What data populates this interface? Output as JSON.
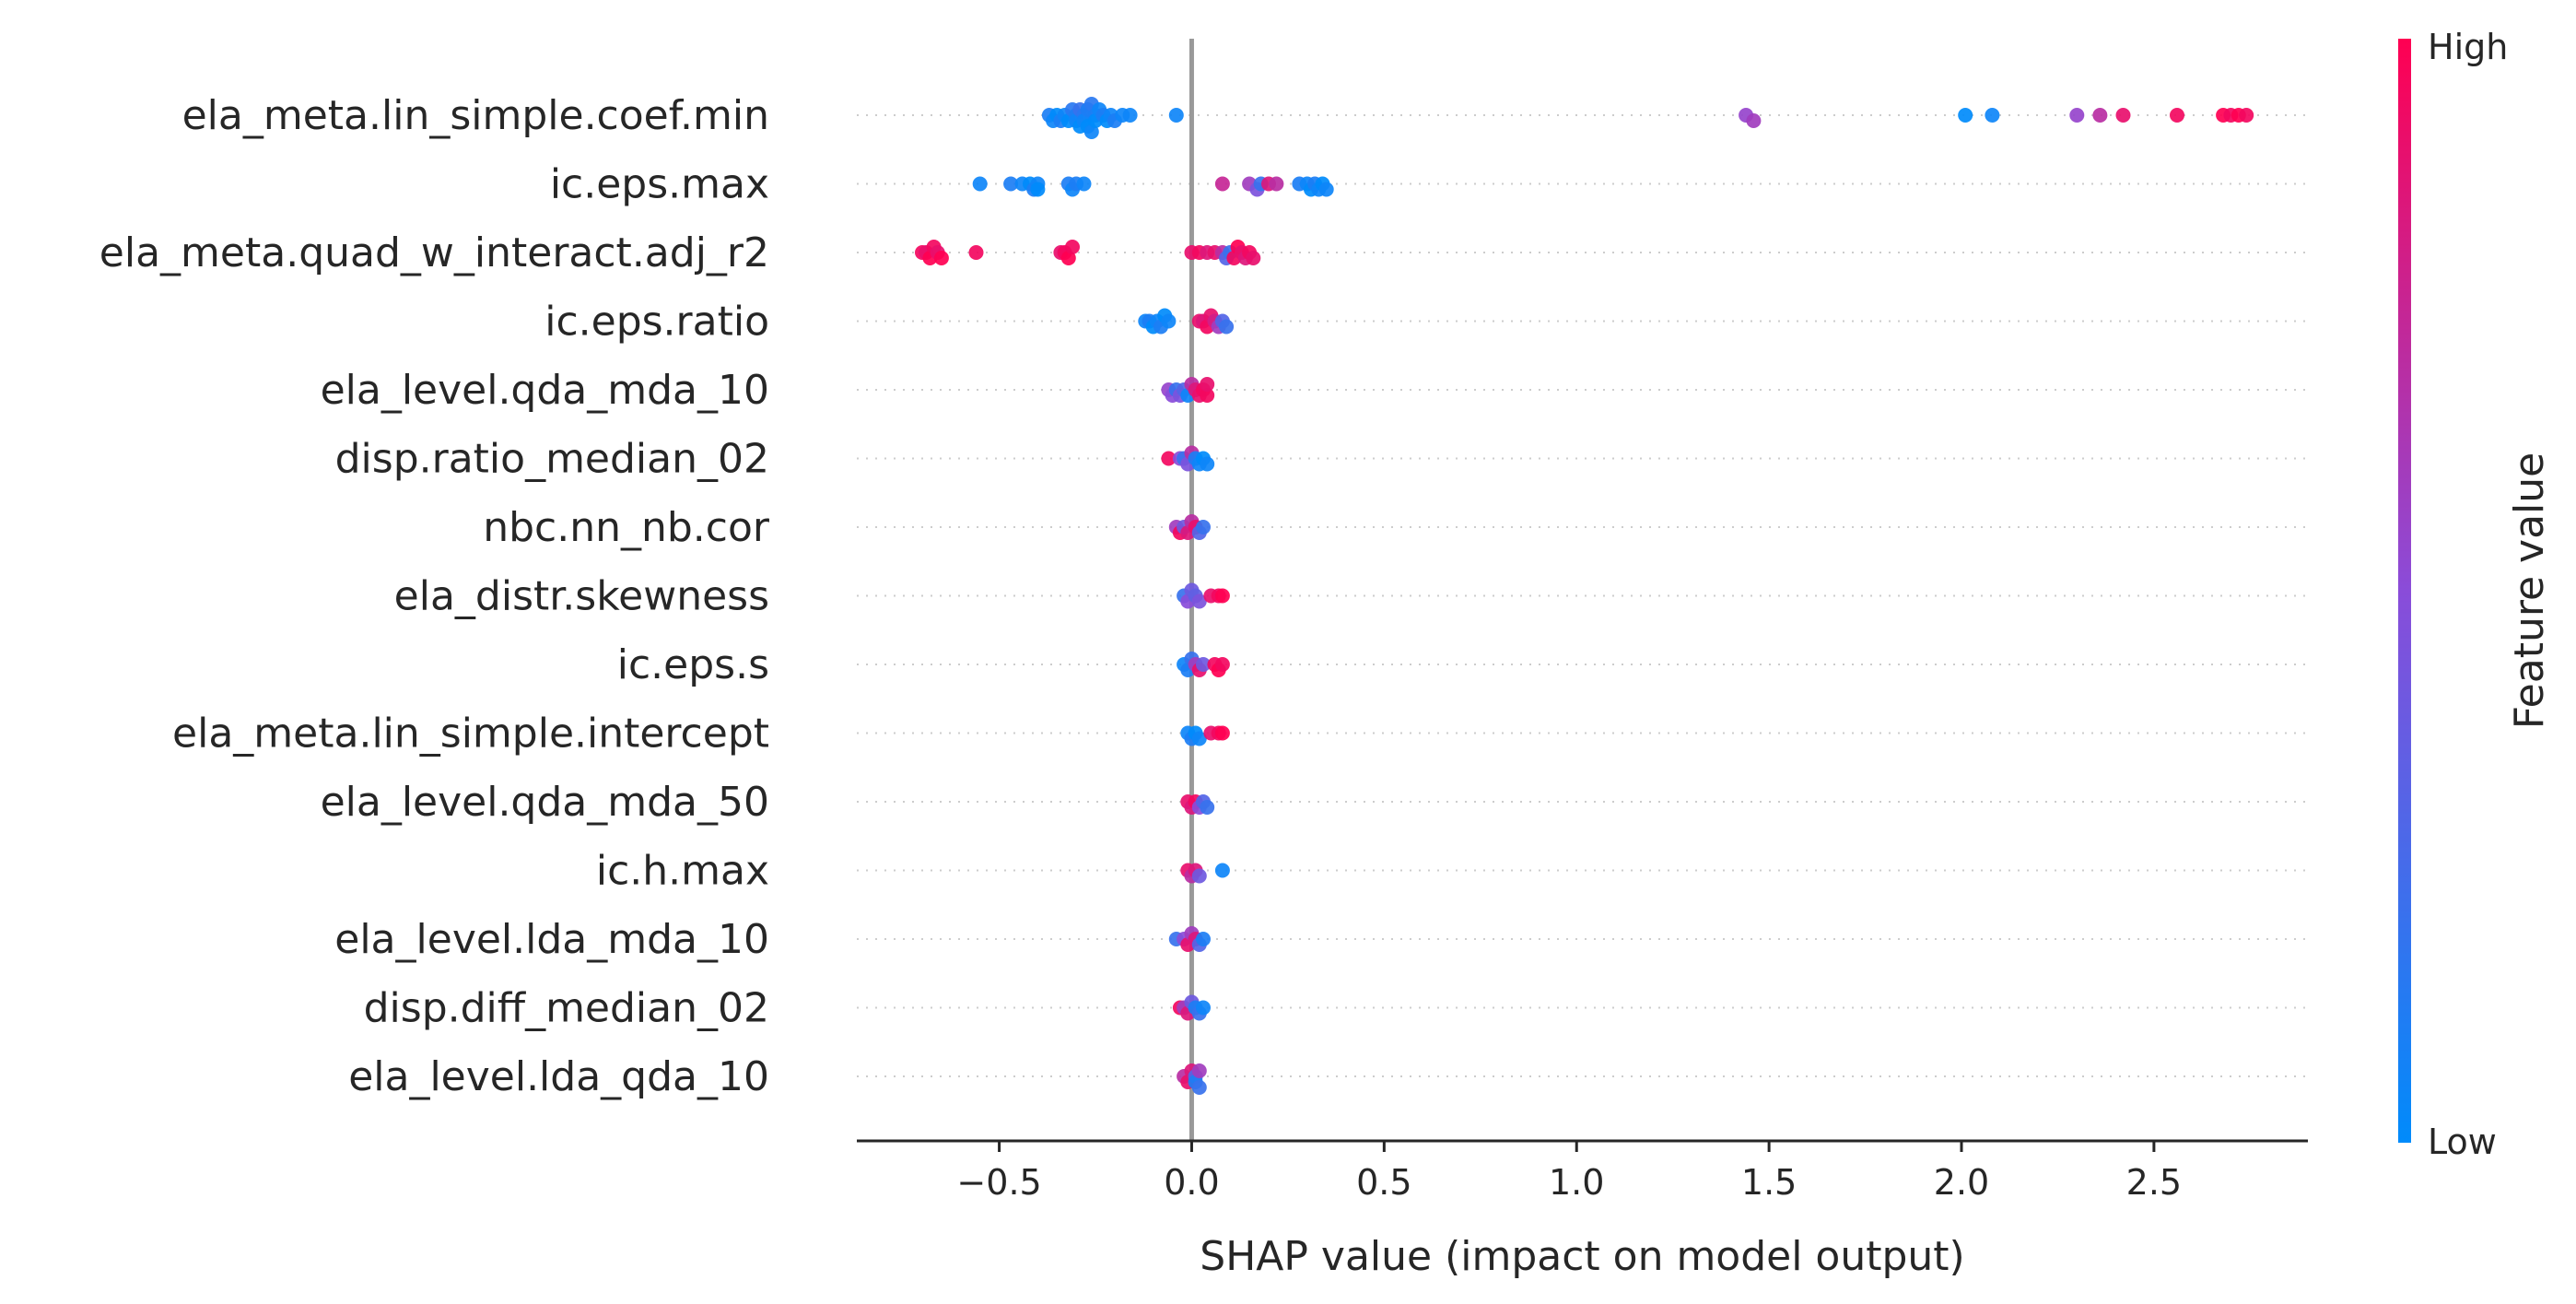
{
  "chart_data": {
    "type": "scatter",
    "subtype": "shap-beeswarm",
    "xlabel": "SHAP value (impact on model output)",
    "xlim": [
      -0.87,
      2.9
    ],
    "xticks": [
      -0.5,
      0.0,
      0.5,
      1.0,
      1.5,
      2.0,
      2.5
    ],
    "xtick_labels": [
      "−0.5",
      "0.0",
      "0.5",
      "1.0",
      "1.5",
      "2.0",
      "2.5"
    ],
    "zero_line": 0.0,
    "grid": false,
    "colorbar": {
      "label": "Feature value",
      "high_label": "High",
      "low_label": "Low",
      "low_color": "#008bfb",
      "mid_color": "#8a4cd9",
      "high_color": "#ff0052",
      "placement": "right"
    },
    "features": [
      {
        "name": "ela_meta.lin_simple.coef.min",
        "points": [
          [
            -0.37,
            0.1
          ],
          [
            -0.36,
            0.05
          ],
          [
            -0.35,
            0.0
          ],
          [
            -0.34,
            0.1
          ],
          [
            -0.33,
            0.05
          ],
          [
            -0.32,
            0.0
          ],
          [
            -0.31,
            0.15
          ],
          [
            -0.3,
            0.1
          ],
          [
            -0.3,
            0.05
          ],
          [
            -0.29,
            0.2
          ],
          [
            -0.29,
            0.0
          ],
          [
            -0.28,
            0.15
          ],
          [
            -0.28,
            0.05
          ],
          [
            -0.27,
            0.1
          ],
          [
            -0.27,
            0.0
          ],
          [
            -0.26,
            0.15
          ],
          [
            -0.26,
            0.05
          ],
          [
            -0.25,
            0.1
          ],
          [
            -0.25,
            0.0
          ],
          [
            -0.24,
            0.05
          ],
          [
            -0.23,
            0.1
          ],
          [
            -0.22,
            0.0
          ],
          [
            -0.21,
            0.05
          ],
          [
            -0.2,
            0.1
          ],
          [
            -0.18,
            0.05
          ],
          [
            -0.16,
            0.05
          ],
          [
            -0.04,
            0.05
          ],
          [
            1.44,
            0.55
          ],
          [
            1.46,
            0.6
          ],
          [
            2.01,
            0.0
          ],
          [
            2.08,
            0.05
          ],
          [
            2.3,
            0.55
          ],
          [
            2.36,
            0.7
          ],
          [
            2.42,
            0.9
          ],
          [
            2.56,
            0.95
          ],
          [
            2.68,
            1.0
          ],
          [
            2.7,
            0.95
          ],
          [
            2.72,
            1.0
          ],
          [
            2.74,
            0.95
          ]
        ]
      },
      {
        "name": "ic.eps.max",
        "points": [
          [
            -0.55,
            0.05
          ],
          [
            -0.47,
            0.1
          ],
          [
            -0.44,
            0.05
          ],
          [
            -0.42,
            0.0
          ],
          [
            -0.41,
            0.1
          ],
          [
            -0.4,
            0.05
          ],
          [
            -0.4,
            0.0
          ],
          [
            -0.32,
            0.1
          ],
          [
            -0.31,
            0.05
          ],
          [
            -0.3,
            0.1
          ],
          [
            -0.28,
            0.05
          ],
          [
            0.08,
            0.75
          ],
          [
            0.15,
            0.6
          ],
          [
            0.17,
            0.45
          ],
          [
            0.18,
            0.2
          ],
          [
            0.2,
            0.85
          ],
          [
            0.22,
            0.7
          ],
          [
            0.28,
            0.1
          ],
          [
            0.3,
            0.05
          ],
          [
            0.31,
            0.0
          ],
          [
            0.32,
            0.1
          ],
          [
            0.33,
            0.05
          ],
          [
            0.34,
            0.0
          ],
          [
            0.35,
            0.05
          ]
        ]
      },
      {
        "name": "ela_meta.quad_w_interact.adj_r2",
        "points": [
          [
            -0.7,
            0.95
          ],
          [
            -0.69,
            0.9
          ],
          [
            -0.68,
            1.0
          ],
          [
            -0.67,
            0.95
          ],
          [
            -0.66,
            0.9
          ],
          [
            -0.65,
            1.0
          ],
          [
            -0.56,
            0.95
          ],
          [
            -0.34,
            0.9
          ],
          [
            -0.33,
            0.95
          ],
          [
            -0.32,
            1.0
          ],
          [
            -0.31,
            0.95
          ],
          [
            0.0,
            0.9
          ],
          [
            0.02,
            0.95
          ],
          [
            0.04,
            0.85
          ],
          [
            0.06,
            0.9
          ],
          [
            0.08,
            0.7
          ],
          [
            0.09,
            0.3
          ],
          [
            0.1,
            0.2
          ],
          [
            0.11,
            0.95
          ],
          [
            0.12,
            1.0
          ],
          [
            0.13,
            0.9
          ],
          [
            0.14,
            0.85
          ],
          [
            0.15,
            0.95
          ],
          [
            0.16,
            0.9
          ]
        ]
      },
      {
        "name": "ic.eps.ratio",
        "points": [
          [
            -0.12,
            0.05
          ],
          [
            -0.11,
            0.1
          ],
          [
            -0.1,
            0.0
          ],
          [
            -0.09,
            0.05
          ],
          [
            -0.08,
            0.1
          ],
          [
            -0.07,
            0.0
          ],
          [
            -0.06,
            0.05
          ],
          [
            0.02,
            0.9
          ],
          [
            0.03,
            0.85
          ],
          [
            0.04,
            0.95
          ],
          [
            0.05,
            0.9
          ],
          [
            0.06,
            0.8
          ],
          [
            0.07,
            0.6
          ],
          [
            0.08,
            0.3
          ],
          [
            0.09,
            0.2
          ]
        ]
      },
      {
        "name": "ela_level.qda_mda_10",
        "points": [
          [
            -0.06,
            0.55
          ],
          [
            -0.05,
            0.5
          ],
          [
            -0.04,
            0.2
          ],
          [
            -0.03,
            0.45
          ],
          [
            -0.02,
            0.3
          ],
          [
            -0.01,
            0.05
          ],
          [
            0.0,
            0.7
          ],
          [
            0.01,
            0.85
          ],
          [
            0.02,
            0.9
          ],
          [
            0.03,
            0.95
          ],
          [
            0.04,
            0.95
          ],
          [
            0.04,
            0.9
          ]
        ]
      },
      {
        "name": "disp.ratio_median_02",
        "points": [
          [
            -0.06,
            0.95
          ],
          [
            -0.03,
            0.5
          ],
          [
            -0.02,
            0.2
          ],
          [
            -0.01,
            0.45
          ],
          [
            0.0,
            0.7
          ],
          [
            0.01,
            0.1
          ],
          [
            0.02,
            0.05
          ],
          [
            0.03,
            0.0
          ],
          [
            0.04,
            0.05
          ]
        ]
      },
      {
        "name": "nbc.nn_nb.cor",
        "points": [
          [
            -0.04,
            0.6
          ],
          [
            -0.03,
            0.95
          ],
          [
            -0.02,
            0.4
          ],
          [
            -0.01,
            0.85
          ],
          [
            0.0,
            0.7
          ],
          [
            0.01,
            0.9
          ],
          [
            0.02,
            0.3
          ],
          [
            0.03,
            0.2
          ]
        ]
      },
      {
        "name": "ela_distr.skewness",
        "points": [
          [
            -0.02,
            0.2
          ],
          [
            -0.01,
            0.5
          ],
          [
            0.0,
            0.4
          ],
          [
            0.01,
            0.35
          ],
          [
            0.02,
            0.45
          ],
          [
            0.05,
            0.9
          ],
          [
            0.07,
            0.95
          ],
          [
            0.08,
            1.0
          ]
        ]
      },
      {
        "name": "ic.eps.s",
        "points": [
          [
            -0.02,
            0.05
          ],
          [
            -0.01,
            0.1
          ],
          [
            0.0,
            0.2
          ],
          [
            0.01,
            0.6
          ],
          [
            0.02,
            0.9
          ],
          [
            0.03,
            0.4
          ],
          [
            0.06,
            0.95
          ],
          [
            0.07,
            1.0
          ],
          [
            0.08,
            0.95
          ]
        ]
      },
      {
        "name": "ela_meta.lin_simple.intercept",
        "points": [
          [
            -0.01,
            0.05
          ],
          [
            0.0,
            0.1
          ],
          [
            0.01,
            0.0
          ],
          [
            0.02,
            0.05
          ],
          [
            0.05,
            0.9
          ],
          [
            0.07,
            0.95
          ],
          [
            0.08,
            1.0
          ]
        ]
      },
      {
        "name": "ela_level.qda_mda_50",
        "points": [
          [
            -0.01,
            0.9
          ],
          [
            0.0,
            0.85
          ],
          [
            0.01,
            0.95
          ],
          [
            0.02,
            0.5
          ],
          [
            0.03,
            0.3
          ],
          [
            0.04,
            0.2
          ]
        ]
      },
      {
        "name": "ic.h.max",
        "points": [
          [
            -0.01,
            0.9
          ],
          [
            0.0,
            0.7
          ],
          [
            0.01,
            0.85
          ],
          [
            0.02,
            0.4
          ],
          [
            0.08,
            0.05
          ]
        ]
      },
      {
        "name": "ela_level.lda_mda_10",
        "points": [
          [
            -0.04,
            0.2
          ],
          [
            -0.02,
            0.5
          ],
          [
            -0.01,
            0.9
          ],
          [
            0.0,
            0.6
          ],
          [
            0.01,
            0.85
          ],
          [
            0.02,
            0.3
          ],
          [
            0.03,
            0.1
          ]
        ]
      },
      {
        "name": "disp.diff_median_02",
        "points": [
          [
            -0.03,
            0.95
          ],
          [
            -0.02,
            0.6
          ],
          [
            -0.01,
            0.85
          ],
          [
            0.0,
            0.4
          ],
          [
            0.01,
            0.1
          ],
          [
            0.02,
            0.2
          ],
          [
            0.03,
            0.05
          ]
        ]
      },
      {
        "name": "ela_level.lda_qda_10",
        "points": [
          [
            -0.02,
            0.7
          ],
          [
            -0.01,
            0.9
          ],
          [
            0.0,
            0.85
          ],
          [
            0.01,
            0.3
          ],
          [
            0.01,
            0.1
          ],
          [
            0.02,
            0.6
          ],
          [
            0.02,
            0.2
          ]
        ]
      }
    ]
  }
}
